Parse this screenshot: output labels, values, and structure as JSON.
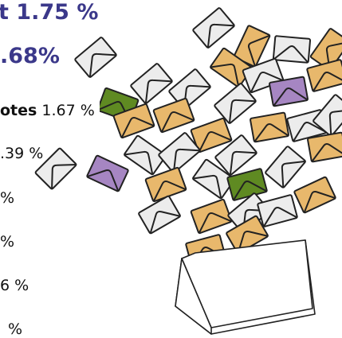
{
  "stats": {
    "line1": "t 1.75 %",
    "line2": ".68%",
    "line3_label": "otes",
    "line3_value": "1.67 %",
    "line4": ".39 %",
    "line5": "%",
    "line6": "%",
    "line7": "6 %",
    "line8": "%"
  }
}
